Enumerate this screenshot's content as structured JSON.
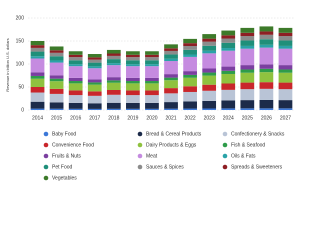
{
  "chart_data": {
    "type": "stacked_bar",
    "y_label": "Revenue in billion U.S. dollars",
    "categories": [
      "2014",
      "2015",
      "2016",
      "2017",
      "2018",
      "2019",
      "2020",
      "2021",
      "2022",
      "2023",
      "2024",
      "2025",
      "2026",
      "2027"
    ],
    "ylim": [
      0,
      200
    ],
    "yticks": [
      0,
      50,
      100,
      150,
      200
    ],
    "grid": true,
    "series": [
      {
        "name": "Baby Food",
        "color": "#3c78d8",
        "values": [
          3,
          2.8,
          2.6,
          2.4,
          2.6,
          2.6,
          2.6,
          2.9,
          3.1,
          3.3,
          3.5,
          3.6,
          3.6,
          3.6
        ]
      },
      {
        "name": "Bread & Cereal Products",
        "color": "#1c2b4a",
        "values": [
          15,
          13.8,
          12.8,
          12.2,
          13.1,
          12.8,
          12.8,
          14.3,
          15.5,
          16.5,
          17.3,
          17.9,
          18.2,
          17.9
        ]
      },
      {
        "name": "Confectionery & Snacks",
        "color": "#b9c4d6",
        "values": [
          20,
          18.4,
          17,
          16.2,
          17.4,
          17,
          17,
          19,
          20.6,
          22,
          23,
          23.8,
          24.2,
          23.8
        ]
      },
      {
        "name": "Convenience Food",
        "color": "#c9262c",
        "values": [
          12,
          11,
          10.2,
          9.7,
          10.4,
          10.2,
          10.2,
          11.4,
          12.4,
          13.2,
          13.8,
          14.3,
          14.5,
          14.3
        ]
      },
      {
        "name": "Dairy Products & Eggs",
        "color": "#8fc23f",
        "values": [
          18,
          16.6,
          15.3,
          14.6,
          15.7,
          15.3,
          15.3,
          17.1,
          18.5,
          19.8,
          20.7,
          21.4,
          21.8,
          21.4
        ]
      },
      {
        "name": "Fish & Seafood",
        "color": "#2e9c4a",
        "values": [
          6,
          5.5,
          5.1,
          4.9,
          5.2,
          5.1,
          5.1,
          5.7,
          6.2,
          6.6,
          6.9,
          7.1,
          7.3,
          7.1
        ]
      },
      {
        "name": "Fruits & Nuts",
        "color": "#7b3fa0",
        "values": [
          8,
          7.4,
          6.8,
          6.5,
          7,
          6.8,
          6.8,
          7.6,
          8.2,
          8.8,
          9.2,
          9.5,
          9.7,
          9.5
        ]
      },
      {
        "name": "Meat",
        "color": "#c58be0",
        "values": [
          30,
          27.6,
          25.5,
          24.3,
          26.1,
          25.5,
          25.5,
          28.5,
          30.9,
          33,
          34.5,
          35.7,
          36.3,
          35.7
        ]
      },
      {
        "name": "Oils & Fats",
        "color": "#2aa3a8",
        "values": [
          5,
          4.6,
          4.3,
          4.1,
          4.4,
          4.3,
          4.3,
          4.8,
          5.2,
          5.5,
          5.8,
          6,
          6.1,
          6
        ]
      },
      {
        "name": "Pet Food",
        "color": "#1f8f7a",
        "values": [
          10,
          9.2,
          8.5,
          8.1,
          8.7,
          8.5,
          8.5,
          9.5,
          10.3,
          11,
          11.5,
          11.9,
          12.1,
          11.9
        ]
      },
      {
        "name": "Sauces & Spices",
        "color": "#8c8c8c",
        "values": [
          8,
          7.4,
          6.8,
          6.5,
          7,
          6.8,
          6.8,
          7.6,
          8.2,
          8.8,
          9.2,
          9.5,
          9.7,
          9.5
        ]
      },
      {
        "name": "Spreads & Sweeteners",
        "color": "#8e1f24",
        "values": [
          6,
          5.5,
          5.1,
          4.9,
          5.2,
          5.1,
          5.1,
          5.7,
          6.2,
          6.6,
          6.9,
          7.1,
          7.3,
          7.1
        ]
      },
      {
        "name": "Vegetables",
        "color": "#3d7a2a",
        "values": [
          9,
          8.3,
          7.7,
          7.3,
          7.8,
          7.7,
          7.7,
          8.6,
          9.3,
          9.9,
          10.4,
          10.7,
          10.9,
          10.7
        ]
      }
    ]
  }
}
